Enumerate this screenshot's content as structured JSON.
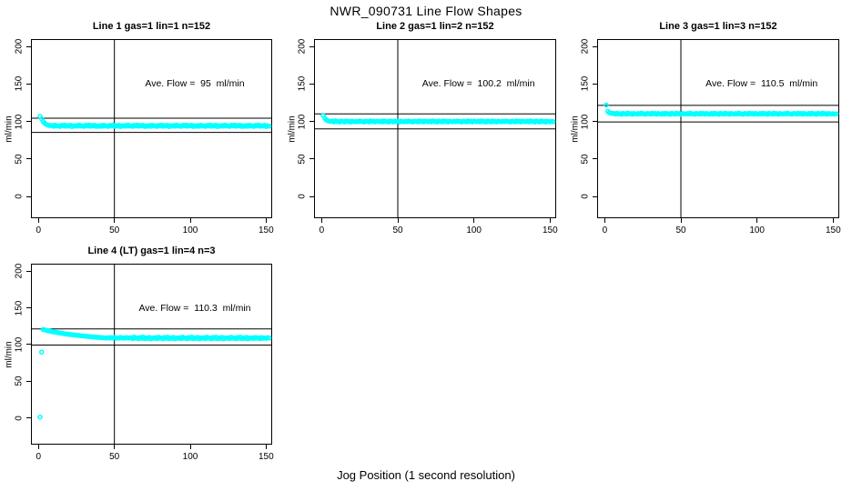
{
  "main_title": "NWR_090731  Line Flow Shapes",
  "xlabel": "Jog Position (1 second resolution)",
  "chart_data": {
    "type": "scatter",
    "title": "NWR_090731  Line Flow Shapes",
    "xlabel": "Jog Position (1 second resolution)",
    "ylabel": "ml/min",
    "point_color": "#00FFFF",
    "line_color": "#000000",
    "x_ticks": [
      0,
      50,
      100,
      150
    ],
    "y_ticks": [
      0,
      50,
      100,
      150,
      200
    ],
    "xlim": [
      -5,
      154
    ],
    "x_start": 1,
    "x_step": 1,
    "legend": "none",
    "grid": false,
    "plots": [
      {
        "title": "Line 1 gas=1 lin=1 n=152",
        "annotation": "Ave. Flow =  95  ml/min",
        "ave_flow": 95,
        "n": 152,
        "vline_x": 50,
        "hlines": [
          104.5,
          85.5
        ],
        "ylim": [
          -29,
          210
        ],
        "values": [
          106.9,
          103.5,
          100.2,
          97.8,
          96.3,
          95.4,
          94.9,
          94.6,
          94.7,
          93.7,
          95.2,
          94.0,
          94.4,
          93.4,
          94.9,
          94.1,
          95.4,
          93.6,
          94.6,
          93.9,
          95.1,
          93.3,
          94.5,
          93.8,
          94.8,
          93.8,
          95.3,
          93.9,
          94.3,
          93.5,
          95.0,
          94.2,
          95.3,
          93.7,
          94.7,
          94.0,
          95.0,
          93.4,
          94.4,
          93.7,
          94.7,
          93.7,
          95.2,
          94.0,
          94.4,
          93.4,
          94.9,
          94.1,
          95.4,
          93.6,
          94.6,
          93.9,
          95.1,
          93.3,
          94.5,
          93.8,
          94.8,
          93.8,
          95.3,
          93.9,
          94.3,
          93.5,
          95.0,
          94.2,
          95.3,
          93.7,
          94.7,
          94.0,
          95.0,
          93.4,
          94.4,
          93.7,
          94.7,
          93.7,
          95.2,
          94.0,
          94.4,
          93.4,
          94.9,
          94.1,
          95.4,
          93.6,
          94.6,
          93.9,
          95.1,
          93.3,
          94.5,
          93.8,
          94.8,
          93.8,
          95.3,
          93.9,
          94.3,
          93.5,
          95.0,
          94.2,
          95.3,
          93.7,
          94.7,
          94.0,
          95.0,
          93.4,
          94.4,
          93.7,
          94.7,
          93.7,
          95.2,
          94.0,
          94.4,
          93.4,
          94.9,
          94.1,
          95.4,
          93.6,
          94.6,
          93.9,
          95.1,
          93.3,
          94.5,
          93.8,
          94.8,
          93.8,
          95.3,
          93.9,
          94.3,
          93.5,
          95.0,
          94.2,
          95.3,
          93.7,
          94.7,
          94.0,
          95.0,
          93.4,
          94.4,
          93.7,
          94.7,
          93.7,
          95.2,
          94.0,
          94.4,
          93.4,
          94.9,
          94.1,
          95.4,
          93.6,
          94.6,
          93.9,
          95.1,
          93.3,
          94.5,
          93.8
        ]
      },
      {
        "title": "Line 2 gas=1 lin=2 n=152",
        "annotation": "Ave. Flow =  100.2  ml/min",
        "ave_flow": 100.2,
        "n": 152,
        "vline_x": 50,
        "hlines": [
          110.2,
          90.2
        ],
        "ylim": [
          -29,
          210
        ],
        "values": [
          108.2,
          104.6,
          102.3,
          101.1,
          100.5,
          100.2,
          100.4,
          99.6,
          100.9,
          99.9,
          100.2,
          99.3,
          100.7,
          100.1,
          99.5,
          100.8,
          99.8,
          100.3,
          99.4,
          100.6,
          100.0,
          99.7,
          100.3,
          99.7,
          100.8,
          100.0,
          100.1,
          99.4,
          100.6,
          100.2,
          99.6,
          100.9,
          99.9,
          100.4,
          99.5,
          100.5,
          100.1,
          99.8,
          100.4,
          99.6,
          100.9,
          99.9,
          100.2,
          99.3,
          100.7,
          100.1,
          99.5,
          100.8,
          99.8,
          100.3,
          99.4,
          100.6,
          100.0,
          99.7,
          100.3,
          99.7,
          100.8,
          100.0,
          100.1,
          99.4,
          100.6,
          100.2,
          99.6,
          100.9,
          99.9,
          100.4,
          99.5,
          100.5,
          100.1,
          99.8,
          100.4,
          99.6,
          100.9,
          99.9,
          100.2,
          99.3,
          100.7,
          100.1,
          99.5,
          100.8,
          99.8,
          100.3,
          99.4,
          100.6,
          100.0,
          99.7,
          100.3,
          99.7,
          100.8,
          100.0,
          100.1,
          99.4,
          100.6,
          100.2,
          99.6,
          100.9,
          99.9,
          100.4,
          99.5,
          100.5,
          100.1,
          99.8,
          100.4,
          99.6,
          100.9,
          99.9,
          100.2,
          99.3,
          100.7,
          100.1,
          99.5,
          100.8,
          99.8,
          100.3,
          99.4,
          100.6,
          100.0,
          99.7,
          100.3,
          99.7,
          100.8,
          100.0,
          100.1,
          99.4,
          100.6,
          100.2,
          99.6,
          100.9,
          99.9,
          100.4,
          99.5,
          100.5,
          100.1,
          99.8,
          100.4,
          99.6,
          100.9,
          99.9,
          100.2,
          99.3,
          100.7,
          100.1,
          99.5,
          100.8,
          99.8,
          100.3,
          99.4,
          100.6,
          100.0,
          99.7,
          100.2,
          99.9
        ]
      },
      {
        "title": "Line 3 gas=1 lin=3 n=152",
        "annotation": "Ave. Flow =  110.5  ml/min",
        "ave_flow": 110.5,
        "n": 152,
        "vline_x": 50,
        "hlines": [
          121.6,
          99.5
        ],
        "ylim": [
          -29,
          210
        ],
        "values": [
          122.1,
          113.5,
          111.8,
          111.0,
          110.7,
          110.7,
          109.9,
          111.1,
          110.2,
          110.5,
          109.6,
          111.0,
          110.4,
          109.8,
          111.2,
          110.1,
          110.6,
          109.7,
          110.9,
          110.3,
          110.0,
          110.6,
          110.0,
          111.2,
          110.1,
          110.4,
          109.7,
          110.9,
          110.5,
          109.9,
          111.1,
          110.2,
          110.7,
          109.8,
          110.8,
          110.2,
          109.9,
          110.7,
          109.9,
          111.1,
          110.2,
          110.5,
          109.6,
          111.0,
          110.4,
          109.8,
          111.2,
          110.1,
          110.6,
          109.7,
          110.9,
          110.3,
          110.0,
          110.6,
          110.0,
          111.2,
          110.1,
          110.4,
          109.7,
          110.9,
          110.5,
          109.9,
          111.1,
          110.2,
          110.7,
          109.8,
          110.8,
          110.2,
          109.9,
          110.7,
          109.9,
          111.1,
          110.2,
          110.5,
          109.6,
          111.0,
          110.4,
          109.8,
          111.2,
          110.1,
          110.6,
          109.7,
          110.9,
          110.3,
          110.0,
          110.6,
          110.0,
          111.2,
          110.1,
          110.4,
          109.7,
          110.9,
          110.5,
          109.9,
          111.1,
          110.2,
          110.7,
          109.8,
          110.8,
          110.2,
          109.9,
          110.7,
          109.9,
          111.1,
          110.2,
          110.5,
          109.6,
          111.0,
          110.4,
          109.8,
          111.2,
          110.1,
          110.6,
          109.7,
          110.9,
          110.3,
          110.0,
          110.6,
          110.0,
          111.2,
          110.1,
          110.4,
          109.7,
          110.9,
          110.5,
          109.9,
          111.1,
          110.2,
          110.7,
          109.8,
          110.8,
          110.2,
          109.9,
          110.7,
          109.9,
          111.1,
          110.2,
          110.5,
          109.6,
          111.0,
          110.4,
          109.8,
          111.2,
          110.1,
          110.6,
          109.7,
          110.9,
          110.3,
          110.0,
          110.5,
          109.8,
          110.4
        ]
      },
      {
        "title": "Line 4 (LT) gas=1 lin=4 n=3",
        "annotation": "Ave. Flow =  110.3  ml/min",
        "ave_flow": 110.3,
        "n": 3,
        "vline_x": 50,
        "hlines": [
          121.3,
          99.3
        ],
        "ylim": [
          -36,
          210
        ],
        "values": [
          1.5,
          89.8,
          120.5,
          120.0,
          119.5,
          119.0,
          118.6,
          118.1,
          117.7,
          117.3,
          116.9,
          116.5,
          116.2,
          115.8,
          115.5,
          115.1,
          114.8,
          114.5,
          114.2,
          113.9,
          113.7,
          113.4,
          113.2,
          112.9,
          112.7,
          112.5,
          112.3,
          112.0,
          111.8,
          111.6,
          111.4,
          111.2,
          111.0,
          110.8,
          110.6,
          110.4,
          110.2,
          110.1,
          109.9,
          109.7,
          109.6,
          109.4,
          109.3,
          109.1,
          109.0,
          109.4,
          108.7,
          109.6,
          108.9,
          109.9,
          108.5,
          109.2,
          108.8,
          109.7,
          108.9,
          109.3,
          108.6,
          109.5,
          109.0,
          109.1,
          109.4,
          108.2,
          110.1,
          108.7,
          109.0,
          107.9,
          109.8,
          108.5,
          110.3,
          108.1,
          109.2,
          108.4,
          109.9,
          107.8,
          109.1,
          108.6,
          109.4,
          108.2,
          110.1,
          108.7,
          109.0,
          107.9,
          109.8,
          108.5,
          110.3,
          108.1,
          109.2,
          108.4,
          109.9,
          107.8,
          109.1,
          108.6,
          109.4,
          108.2,
          110.1,
          108.7,
          109.0,
          107.9,
          109.8,
          108.5,
          110.3,
          108.1,
          109.2,
          108.4,
          109.9,
          107.8,
          109.1,
          108.6,
          109.4,
          108.2,
          110.1,
          108.7,
          109.0,
          107.9,
          109.8,
          108.5,
          110.3,
          108.1,
          109.2,
          108.4,
          109.9,
          107.8,
          109.1,
          108.6,
          109.4,
          108.2,
          110.1,
          108.7,
          109.0,
          107.9,
          109.8,
          108.5,
          110.3,
          108.1,
          109.2,
          108.4,
          109.9,
          107.8,
          109.1,
          108.6,
          109.3,
          108.3,
          109.7,
          108.8,
          109.2,
          108.0,
          109.6,
          108.6,
          109.0,
          108.4,
          109.5,
          108.9
        ]
      }
    ]
  }
}
